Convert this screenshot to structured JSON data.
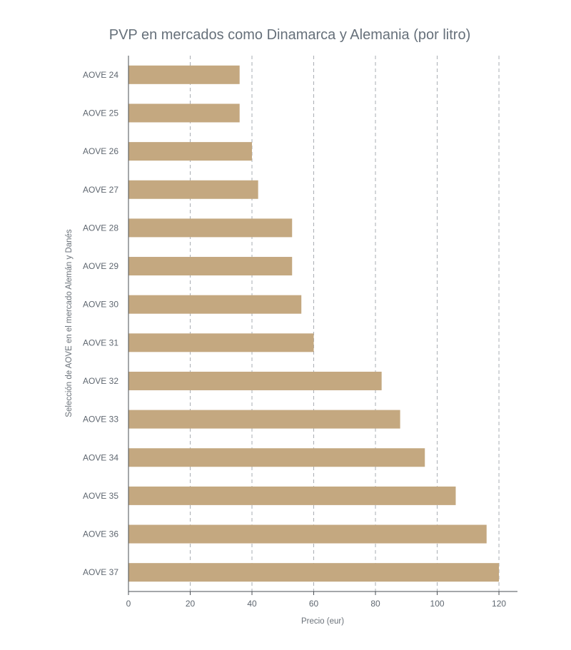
{
  "chart_data": {
    "type": "bar",
    "orientation": "horizontal",
    "title": "PVP en mercados como Dinamarca y Alemania (por litro)",
    "xlabel": "Precio (eur)",
    "ylabel": "Selección de AOVE en el mercado Alemán y Danés",
    "categories": [
      "AOVE 24",
      "AOVE 25",
      "AOVE 26",
      "AOVE 27",
      "AOVE 28",
      "AOVE 29",
      "AOVE 30",
      "AOVE 31",
      "AOVE 32",
      "AOVE 33",
      "AOVE 34",
      "AOVE 35",
      "AOVE 36",
      "AOVE 37"
    ],
    "values": [
      36,
      36,
      40,
      42,
      53,
      53,
      56,
      60,
      82,
      88,
      96,
      106,
      116,
      120
    ],
    "xlim": [
      0,
      126
    ],
    "xticks": [
      0,
      20,
      40,
      60,
      80,
      100,
      120
    ],
    "grid": "vertical-dashed",
    "bar_color": "#c4a880",
    "legend": "none"
  }
}
